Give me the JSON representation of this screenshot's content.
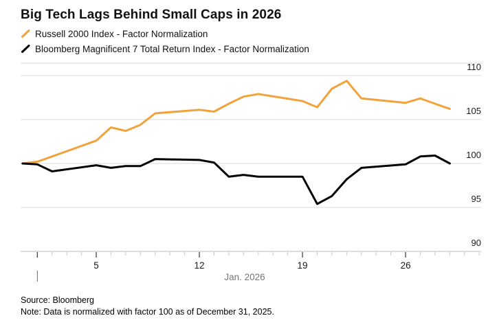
{
  "title": "Big Tech Lags Behind Small Caps in 2026",
  "legend": [
    {
      "label": "Russell 2000 Index - Factor Normalization",
      "color": "#F2A23A"
    },
    {
      "label": "Bloomberg Magnificent 7 Total Return Index - Factor Normalization",
      "color": "#000000"
    }
  ],
  "footer": {
    "source": "Source: Bloomberg",
    "note": "Note: Data is normalized with factor 100 as of December 31, 2025."
  },
  "colors": {
    "gridline": "#DADADA",
    "axis_line": "#BBBBBB",
    "minor_tick": "#C8C8C8",
    "major_tick": "#444444",
    "axis_text": "#1A1A1A",
    "xlabel_text": "#777777",
    "year_divider": "#666666"
  },
  "chart_data": {
    "type": "line",
    "title": "Big Tech Lags Behind Small Caps in 2026",
    "xlabel": "Jan. 2026",
    "ylabel": "",
    "x_unit": "days since Dec 31, 2025 (calendar axis)",
    "x": [
      0,
      1,
      2,
      5,
      6,
      7,
      8,
      9,
      12,
      13,
      14,
      15,
      16,
      19,
      20,
      21,
      22,
      23,
      26,
      27,
      28,
      29
    ],
    "series": [
      {
        "name": "Russell 2000 Index - Factor Normalization",
        "color": "#F2A23A",
        "values": [
          100.0,
          100.2,
          100.8,
          102.6,
          104.1,
          103.7,
          104.4,
          105.7,
          106.1,
          105.9,
          106.8,
          107.6,
          107.9,
          107.1,
          106.4,
          108.5,
          109.4,
          107.4,
          106.9,
          107.4,
          106.8,
          106.2
        ]
      },
      {
        "name": "Bloomberg Magnificent 7 Total Return Index - Factor Normalization",
        "color": "#000000",
        "values": [
          100.0,
          99.9,
          99.1,
          99.8,
          99.5,
          99.7,
          99.7,
          100.5,
          100.4,
          100.1,
          98.5,
          98.7,
          98.5,
          98.5,
          95.4,
          96.3,
          98.2,
          99.5,
          99.9,
          100.8,
          100.9,
          100.0
        ]
      }
    ],
    "y_ticks": [
      90,
      95,
      100,
      105,
      110
    ],
    "ylim": [
      90,
      111.4
    ],
    "x_tick_labels": [
      "5",
      "12",
      "19",
      "26"
    ],
    "x_label_days": [
      5,
      12,
      19,
      26
    ],
    "x_major_tick_days": [
      1,
      5,
      12,
      19,
      26
    ],
    "x_minor_tick_days_range": [
      1,
      31
    ],
    "grid": "horizontal only, labels on right"
  }
}
